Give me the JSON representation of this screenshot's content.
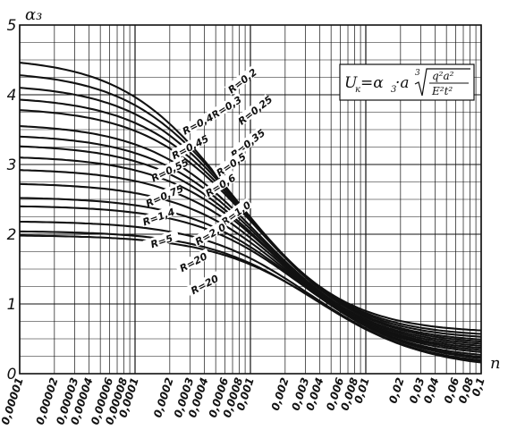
{
  "chart_data": {
    "type": "line",
    "title": "",
    "ylabel": "α₃",
    "xlabel": "n",
    "formula": {
      "lhs": "U",
      "lhs_sub": "к",
      "eq": "=α",
      "eq_sub": "3",
      "mid": "·a",
      "root_index": "3",
      "numerator": "q²a²",
      "denominator": "E²t²"
    },
    "x_scale": "log",
    "xlim": [
      1e-05,
      0.1
    ],
    "ylim": [
      0,
      5
    ],
    "grid": true,
    "y_ticks": [
      "0",
      "1",
      "2",
      "3",
      "4",
      "5"
    ],
    "x_ticks": [
      "0,00001",
      "0,00002",
      "0,00003",
      "0,00004",
      "0,00006",
      "0,00008",
      "0,0001",
      "0,0002",
      "0,0003",
      "0,0004",
      "0,0006",
      "0,0008",
      "0,001",
      "0,002",
      "0,003",
      "0,004",
      "0,006",
      "0,008",
      "0,01",
      "0,02",
      "0,03",
      "0,04",
      "0,06",
      "0,08",
      "0,1"
    ],
    "x_tick_values": [
      1e-05,
      2e-05,
      3e-05,
      4e-05,
      6e-05,
      8e-05,
      0.0001,
      0.0002,
      0.0003,
      0.0004,
      0.0006,
      0.0008,
      0.001,
      0.002,
      0.003,
      0.004,
      0.006,
      0.008,
      0.01,
      0.02,
      0.03,
      0.04,
      0.06,
      0.08,
      0.1
    ],
    "series": [
      {
        "name": "R=0,2",
        "y0": 4.46,
        "yend": 0.62,
        "xmid": 0.0007
      },
      {
        "name": "R=0,25",
        "y0": 4.28,
        "yend": 0.57,
        "xmid": 0.0008
      },
      {
        "name": "R=0,3",
        "y0": 4.1,
        "yend": 0.53,
        "xmid": 0.0009
      },
      {
        "name": "R=0,35",
        "y0": 3.93,
        "yend": 0.49,
        "xmid": 0.001
      },
      {
        "name": "R=0,4",
        "y0": 3.78,
        "yend": 0.46,
        "xmid": 0.0011
      },
      {
        "name": "R=0,45",
        "y0": 3.55,
        "yend": 0.43,
        "xmid": 0.0012
      },
      {
        "name": "R=0,5",
        "y0": 3.4,
        "yend": 0.4,
        "xmid": 0.0013
      },
      {
        "name": "R=0,55",
        "y0": 3.26,
        "yend": 0.37,
        "xmid": 0.0014
      },
      {
        "name": "R=0,6",
        "y0": 3.1,
        "yend": 0.34,
        "xmid": 0.0016
      },
      {
        "name": "R=0,75",
        "y0": 2.92,
        "yend": 0.31,
        "xmid": 0.0018
      },
      {
        "name": "R=1,0",
        "y0": 2.72,
        "yend": 0.27,
        "xmid": 0.0021
      },
      {
        "name": "R=1,4",
        "y0": 2.52,
        "yend": 0.24,
        "xmid": 0.0025
      },
      {
        "name": "R=2,0",
        "y0": 2.4,
        "yend": 0.22,
        "xmid": 0.0028
      },
      {
        "name": "R=5",
        "y0": 2.18,
        "yend": 0.19,
        "xmid": 0.0032
      },
      {
        "name": "R=20",
        "y0": 2.04,
        "yend": 0.17,
        "xmid": 0.0036
      },
      {
        "name": "R=20",
        "y0": 1.98,
        "yend": 0.16,
        "xmid": 0.004
      }
    ],
    "curve_labels": [
      {
        "text": "R=0,2",
        "x": 0.00085,
        "y": 4.2,
        "angle": -38
      },
      {
        "text": "R=0,25",
        "x": 0.0011,
        "y": 3.78,
        "angle": -38
      },
      {
        "text": "R=0,3",
        "x": 0.00062,
        "y": 3.82,
        "angle": -32
      },
      {
        "text": "R=0,35",
        "x": 0.00095,
        "y": 3.3,
        "angle": -38
      },
      {
        "text": "R=0,4",
        "x": 0.00035,
        "y": 3.58,
        "angle": -28
      },
      {
        "text": "R=0,45",
        "x": 0.0003,
        "y": 3.25,
        "angle": -28
      },
      {
        "text": "R=0,5",
        "x": 0.00068,
        "y": 3.0,
        "angle": -34
      },
      {
        "text": "R=0,55",
        "x": 0.0002,
        "y": 2.92,
        "angle": -26
      },
      {
        "text": "R=0,6",
        "x": 0.00055,
        "y": 2.7,
        "angle": -32
      },
      {
        "text": "R=0,75",
        "x": 0.00018,
        "y": 2.55,
        "angle": -24
      },
      {
        "text": "R=1,0",
        "x": 0.00075,
        "y": 2.3,
        "angle": -36
      },
      {
        "text": "R=1,4",
        "x": 0.00016,
        "y": 2.25,
        "angle": -20
      },
      {
        "text": "R=2,0",
        "x": 0.00045,
        "y": 2.0,
        "angle": -30
      },
      {
        "text": "R=5",
        "x": 0.00017,
        "y": 1.9,
        "angle": -18
      },
      {
        "text": "R=20",
        "x": 0.00032,
        "y": 1.6,
        "angle": -28
      },
      {
        "text": "R=20",
        "x": 0.0004,
        "y": 1.28,
        "angle": -28
      }
    ]
  }
}
